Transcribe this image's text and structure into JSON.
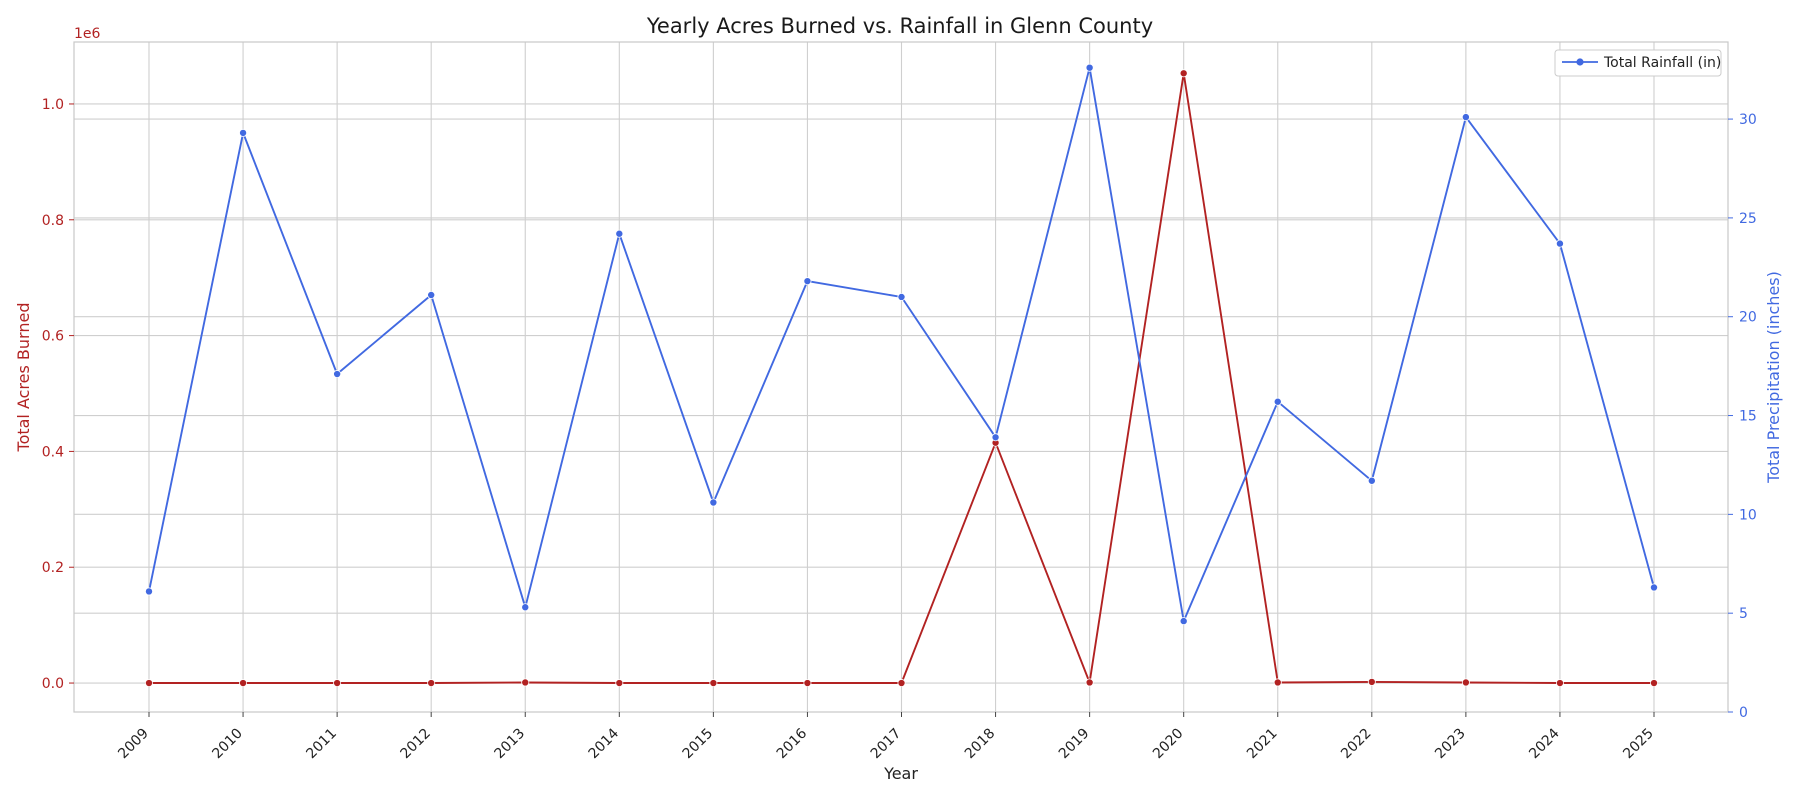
{
  "chart_data": {
    "type": "line",
    "title": "Yearly Acres Burned vs. Rainfall in Glenn County",
    "xlabel": "Year",
    "x": [
      "2009",
      "2010",
      "2011",
      "2012",
      "2013",
      "2014",
      "2015",
      "2016",
      "2017",
      "2018",
      "2019",
      "2020",
      "2021",
      "2022",
      "2023",
      "2024",
      "2025"
    ],
    "y_left": {
      "label": "Total Acres Burned",
      "offset_text": "1e6",
      "ylim": [
        -0.05,
        1.107
      ],
      "ticks": [
        0.0,
        0.2,
        0.4,
        0.6,
        0.8,
        1.0
      ],
      "tick_labels": [
        "0.0",
        "0.2",
        "0.4",
        "0.6",
        "0.8",
        "1.0"
      ]
    },
    "y_right": {
      "label": "Total Precipitation (inches)",
      "ylim": [
        0,
        33.9
      ],
      "ticks": [
        0,
        5,
        10,
        15,
        20,
        25,
        30
      ],
      "tick_labels": [
        "0",
        "5",
        "10",
        "15",
        "20",
        "25",
        "30"
      ]
    },
    "series": [
      {
        "axis": "left",
        "color": "#b22222",
        "values": [
          0.0,
          0.0,
          0.0,
          0.0,
          0.001,
          0.0,
          0.0,
          0.0,
          0.0,
          0.415,
          0.001,
          1.053,
          0.001,
          0.002,
          0.001,
          0.0,
          0.0
        ]
      },
      {
        "name": "Total Rainfall (in)",
        "axis": "right",
        "color": "#4169e1",
        "values": [
          6.1,
          29.3,
          17.1,
          21.1,
          5.3,
          24.2,
          10.6,
          21.8,
          21.0,
          13.9,
          32.6,
          4.6,
          15.7,
          11.7,
          30.1,
          23.7,
          6.3
        ]
      }
    ],
    "grid": true,
    "legend": {
      "position": "top-right",
      "entries": [
        "Total Rainfall (in)"
      ]
    }
  }
}
